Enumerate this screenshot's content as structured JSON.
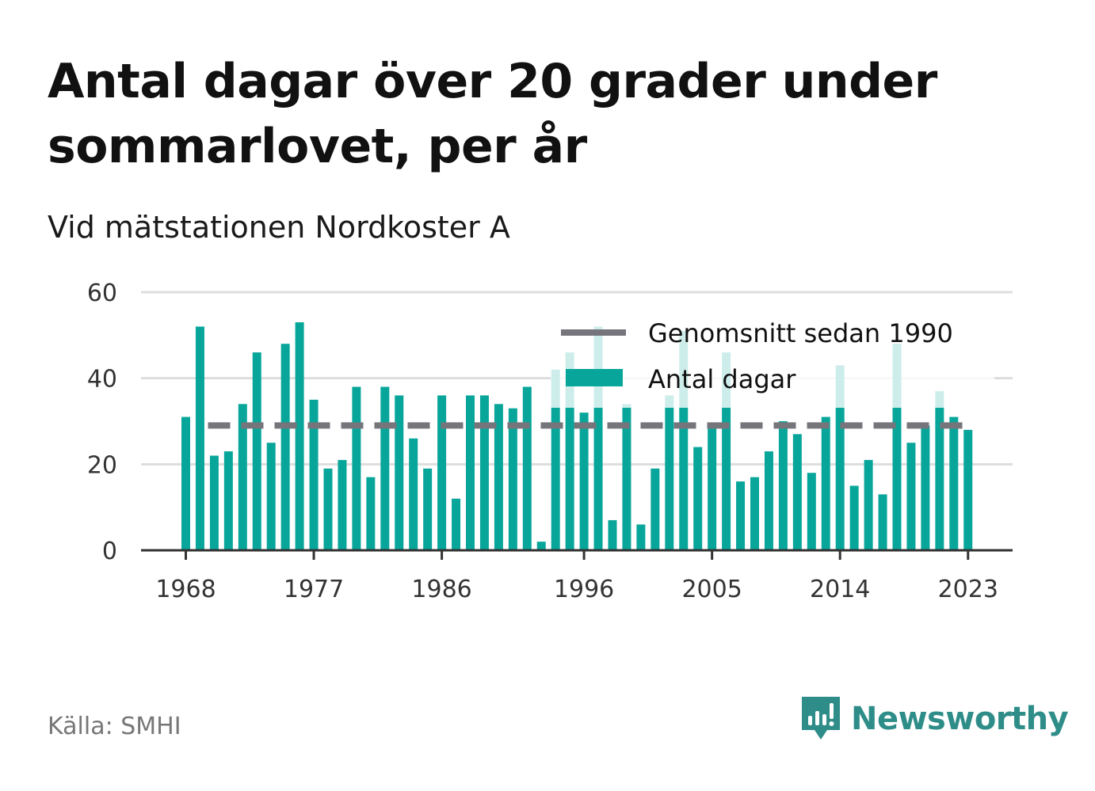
{
  "header": {
    "title": "Antal dagar över 20 grader under sommarlovet, per år",
    "subtitle": "Vid mätstationen Nordkoster A"
  },
  "footer": {
    "source": "Källa: SMHI",
    "brand": "Newsworthy"
  },
  "colors": {
    "bar": "#08a69a",
    "average": "#76757c",
    "grid": "#dddddd",
    "axis": "#333333",
    "brand": "#2e8d88"
  },
  "chart_data": {
    "type": "bar",
    "x": [
      1968,
      1969,
      1970,
      1971,
      1972,
      1973,
      1974,
      1975,
      1976,
      1977,
      1978,
      1979,
      1980,
      1981,
      1982,
      1983,
      1984,
      1985,
      1986,
      1987,
      1988,
      1989,
      1990,
      1991,
      1992,
      1993,
      1994,
      1995,
      1996,
      1997,
      1998,
      1999,
      2000,
      2001,
      2002,
      2003,
      2004,
      2005,
      2006,
      2007,
      2008,
      2009,
      2010,
      2011,
      2012,
      2013,
      2014,
      2015,
      2016,
      2017,
      2018,
      2019,
      2020,
      2021,
      2022,
      2023
    ],
    "series": [
      {
        "name": "Antal dagar",
        "values": [
          31,
          52,
          22,
          23,
          34,
          46,
          25,
          48,
          53,
          35,
          19,
          21,
          38,
          17,
          38,
          36,
          26,
          19,
          36,
          12,
          36,
          36,
          34,
          33,
          38,
          2,
          42,
          46,
          32,
          52,
          7,
          34,
          6,
          19,
          36,
          51,
          24,
          29,
          46,
          16,
          17,
          23,
          30,
          27,
          18,
          31,
          43,
          15,
          21,
          13,
          48,
          25,
          29,
          37,
          31,
          28
        ]
      },
      {
        "name": "Genomsnitt sedan 1990",
        "value": 29
      }
    ],
    "x_ticks": [
      "1968",
      "1977",
      "1986",
      "1996",
      "2005",
      "2014",
      "2023"
    ],
    "y_ticks": [
      "0",
      "20",
      "40",
      "60"
    ],
    "ylim": [
      0,
      60
    ],
    "grid": true,
    "legend_position": "top-right",
    "legend": [
      {
        "label": "Genomsnitt sedan 1990",
        "kind": "line"
      },
      {
        "label": "Antal dagar",
        "kind": "bar"
      }
    ]
  }
}
